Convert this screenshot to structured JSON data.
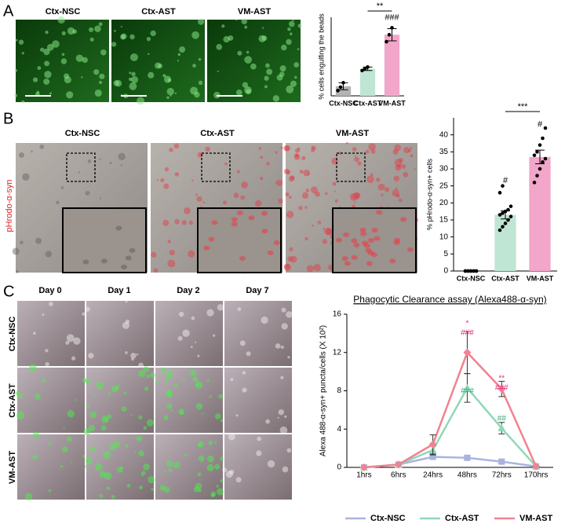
{
  "figure": {
    "panel_letters": [
      "A",
      "B",
      "C"
    ],
    "a_columns": [
      "Ctx-NSC",
      "Ctx-AST",
      "VM-AST"
    ],
    "b_columns": [
      "Ctx-NSC",
      "Ctx-AST",
      "VM-AST"
    ],
    "b_side_label": "pHrodo-α-syn",
    "c_columns": [
      "Day 0",
      "Day 1",
      "Day 2",
      "Day 7"
    ],
    "c_rows": [
      "Ctx-NSC",
      "Ctx-AST",
      "VM-AST"
    ]
  },
  "chart_data": [
    {
      "type": "bar",
      "ylabel": "% cells engulfing the beads",
      "categories": [
        "Ctx-NSC",
        "Ctx-AST",
        "VM-AST"
      ],
      "values": [
        5.5,
        15.5,
        35
      ],
      "errors": [
        2,
        1,
        3.5
      ],
      "colors": [
        "#b3b3b3",
        "#bfe6d4",
        "#f2a6c9"
      ],
      "points": [
        [
          3,
          5,
          7.5
        ],
        [
          14.5,
          15.5,
          16.5
        ],
        [
          31,
          35,
          39
        ]
      ],
      "ylim": [
        0,
        45
      ],
      "annotations": [
        "**",
        "###"
      ]
    },
    {
      "type": "bar",
      "ylabel": "% pHrodo-α-syn+ cells",
      "categories": [
        "Ctx-NSC",
        "Ctx-AST",
        "VM-AST"
      ],
      "values": [
        0,
        16.5,
        33.5
      ],
      "errors": [
        0,
        1.2,
        2
      ],
      "colors": [
        "#b3b3b3",
        "#bfe6d4",
        "#f2a6c9"
      ],
      "points": [
        [
          0,
          0,
          0,
          0,
          0,
          0,
          0,
          0,
          0,
          0
        ],
        [
          12,
          13,
          14,
          15,
          16,
          16.5,
          17,
          17.5,
          18,
          19,
          23,
          25
        ],
        [
          26,
          28,
          30,
          32,
          33,
          34,
          35,
          37,
          39,
          42
        ]
      ],
      "ylim": [
        0,
        45
      ],
      "yticks": [
        0,
        5,
        10,
        15,
        20,
        25,
        30,
        35,
        40
      ],
      "annotations": [
        "#",
        "#",
        "***"
      ]
    },
    {
      "type": "line",
      "title": "Phagocytic Clearance assay (Alexa488-α-syn)",
      "ylabel": "Alexa 488-α-syn+ puncta/cells (X 10²)",
      "categories": [
        "1hrs",
        "6hrs",
        "24hrs",
        "48hrs",
        "72hrs",
        "170hrs"
      ],
      "ylim": [
        0,
        16
      ],
      "yticks": [
        0,
        4,
        8,
        12,
        16
      ],
      "series": [
        {
          "name": "Ctx-NSC",
          "color": "#a9b3e0",
          "marker": "square",
          "values": [
            0,
            0.3,
            1.1,
            1.0,
            0.6,
            0.1
          ],
          "errors": [
            0,
            0,
            0.2,
            0.2,
            0.2,
            0
          ]
        },
        {
          "name": "Ctx-AST",
          "color": "#8fd8b6",
          "marker": "triangle",
          "values": [
            0,
            0.3,
            1.8,
            8.3,
            4.1,
            0.1
          ],
          "errors": [
            0,
            0,
            0.5,
            1.5,
            0.6,
            0
          ]
        },
        {
          "name": "VM-AST",
          "color": "#f28290",
          "marker": "diamond",
          "values": [
            0,
            0.3,
            2.4,
            12,
            8.2,
            0.1
          ],
          "errors": [
            0,
            0,
            1,
            2.2,
            0.8,
            0
          ]
        }
      ],
      "annotations": [
        "*",
        "###",
        "###",
        "**",
        "###",
        "##"
      ]
    }
  ]
}
